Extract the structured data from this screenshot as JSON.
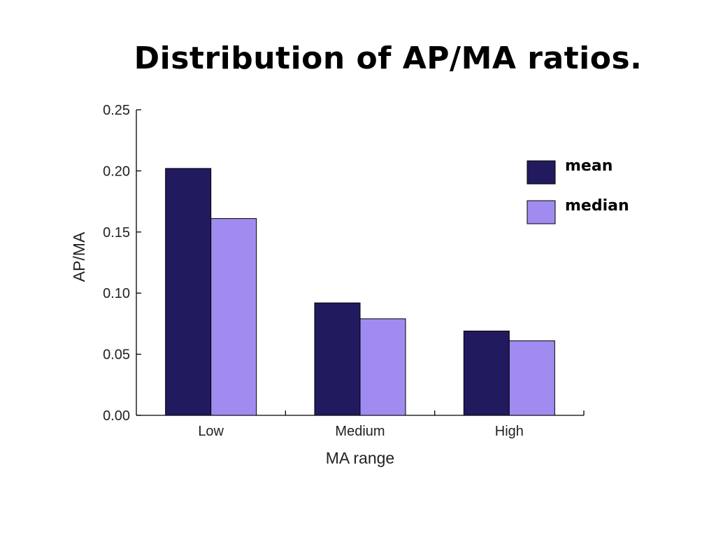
{
  "title": "Distribution of AP/MA ratios.",
  "chart_data": {
    "type": "bar",
    "categories": [
      "Low",
      "Medium",
      "High"
    ],
    "series": [
      {
        "name": "mean",
        "values": [
          0.202,
          0.092,
          0.069
        ],
        "color": "#221a5e"
      },
      {
        "name": "median",
        "values": [
          0.161,
          0.079,
          0.061
        ],
        "color": "#a08cf0"
      }
    ],
    "xlabel": "MA range",
    "ylabel": "AP/MA",
    "ylim": [
      0,
      0.25
    ],
    "yticks": [
      "0.00",
      "0.05",
      "0.10",
      "0.15",
      "0.20",
      "0.25"
    ],
    "grid": false,
    "legend_position": "top-right"
  }
}
